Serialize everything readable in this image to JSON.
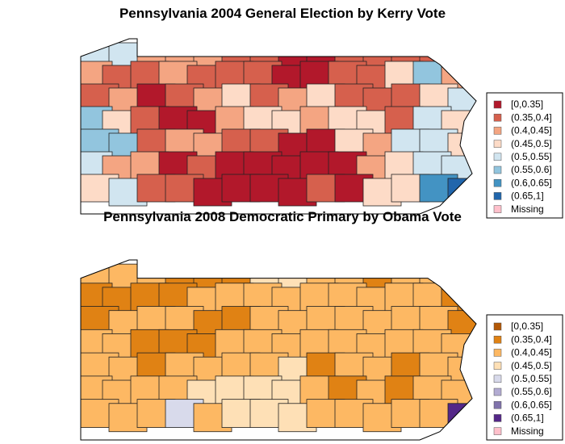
{
  "maps": [
    {
      "title": "Pennsylvania 2004 General Election by Kerry Vote",
      "legend": [
        {
          "label": "[0,0.35]",
          "color": "#b2182b"
        },
        {
          "label": "(0.35,0.4]",
          "color": "#d6604d"
        },
        {
          "label": "(0.4,0.45]",
          "color": "#f4a582"
        },
        {
          "label": "(0.45,0.5]",
          "color": "#fddbc7"
        },
        {
          "label": "(0.5,0.55]",
          "color": "#d1e5f0"
        },
        {
          "label": "(0.55,0.6]",
          "color": "#92c5de"
        },
        {
          "label": "(0.6,0.65]",
          "color": "#4393c3"
        },
        {
          "label": "(0.65,1]",
          "color": "#2166ac"
        },
        {
          "label": "Missing",
          "color": "#ffc0cb"
        }
      ]
    },
    {
      "title": "Pennsylvania 2008 Democratic Primary by Obama Vote",
      "legend": [
        {
          "label": "[0,0.35]",
          "color": "#b35806"
        },
        {
          "label": "(0.35,0.4]",
          "color": "#e08214"
        },
        {
          "label": "(0.4,0.45]",
          "color": "#fdb863"
        },
        {
          "label": "(0.45,0.5]",
          "color": "#fee0b6"
        },
        {
          "label": "(0.5,0.55]",
          "color": "#d8daeb"
        },
        {
          "label": "(0.55,0.6]",
          "color": "#b2abd2"
        },
        {
          "label": "(0.6,0.65]",
          "color": "#8073ac"
        },
        {
          "label": "(0.65,1]",
          "color": "#542788"
        },
        {
          "label": "Missing",
          "color": "#ffc0cb"
        }
      ]
    }
  ]
}
